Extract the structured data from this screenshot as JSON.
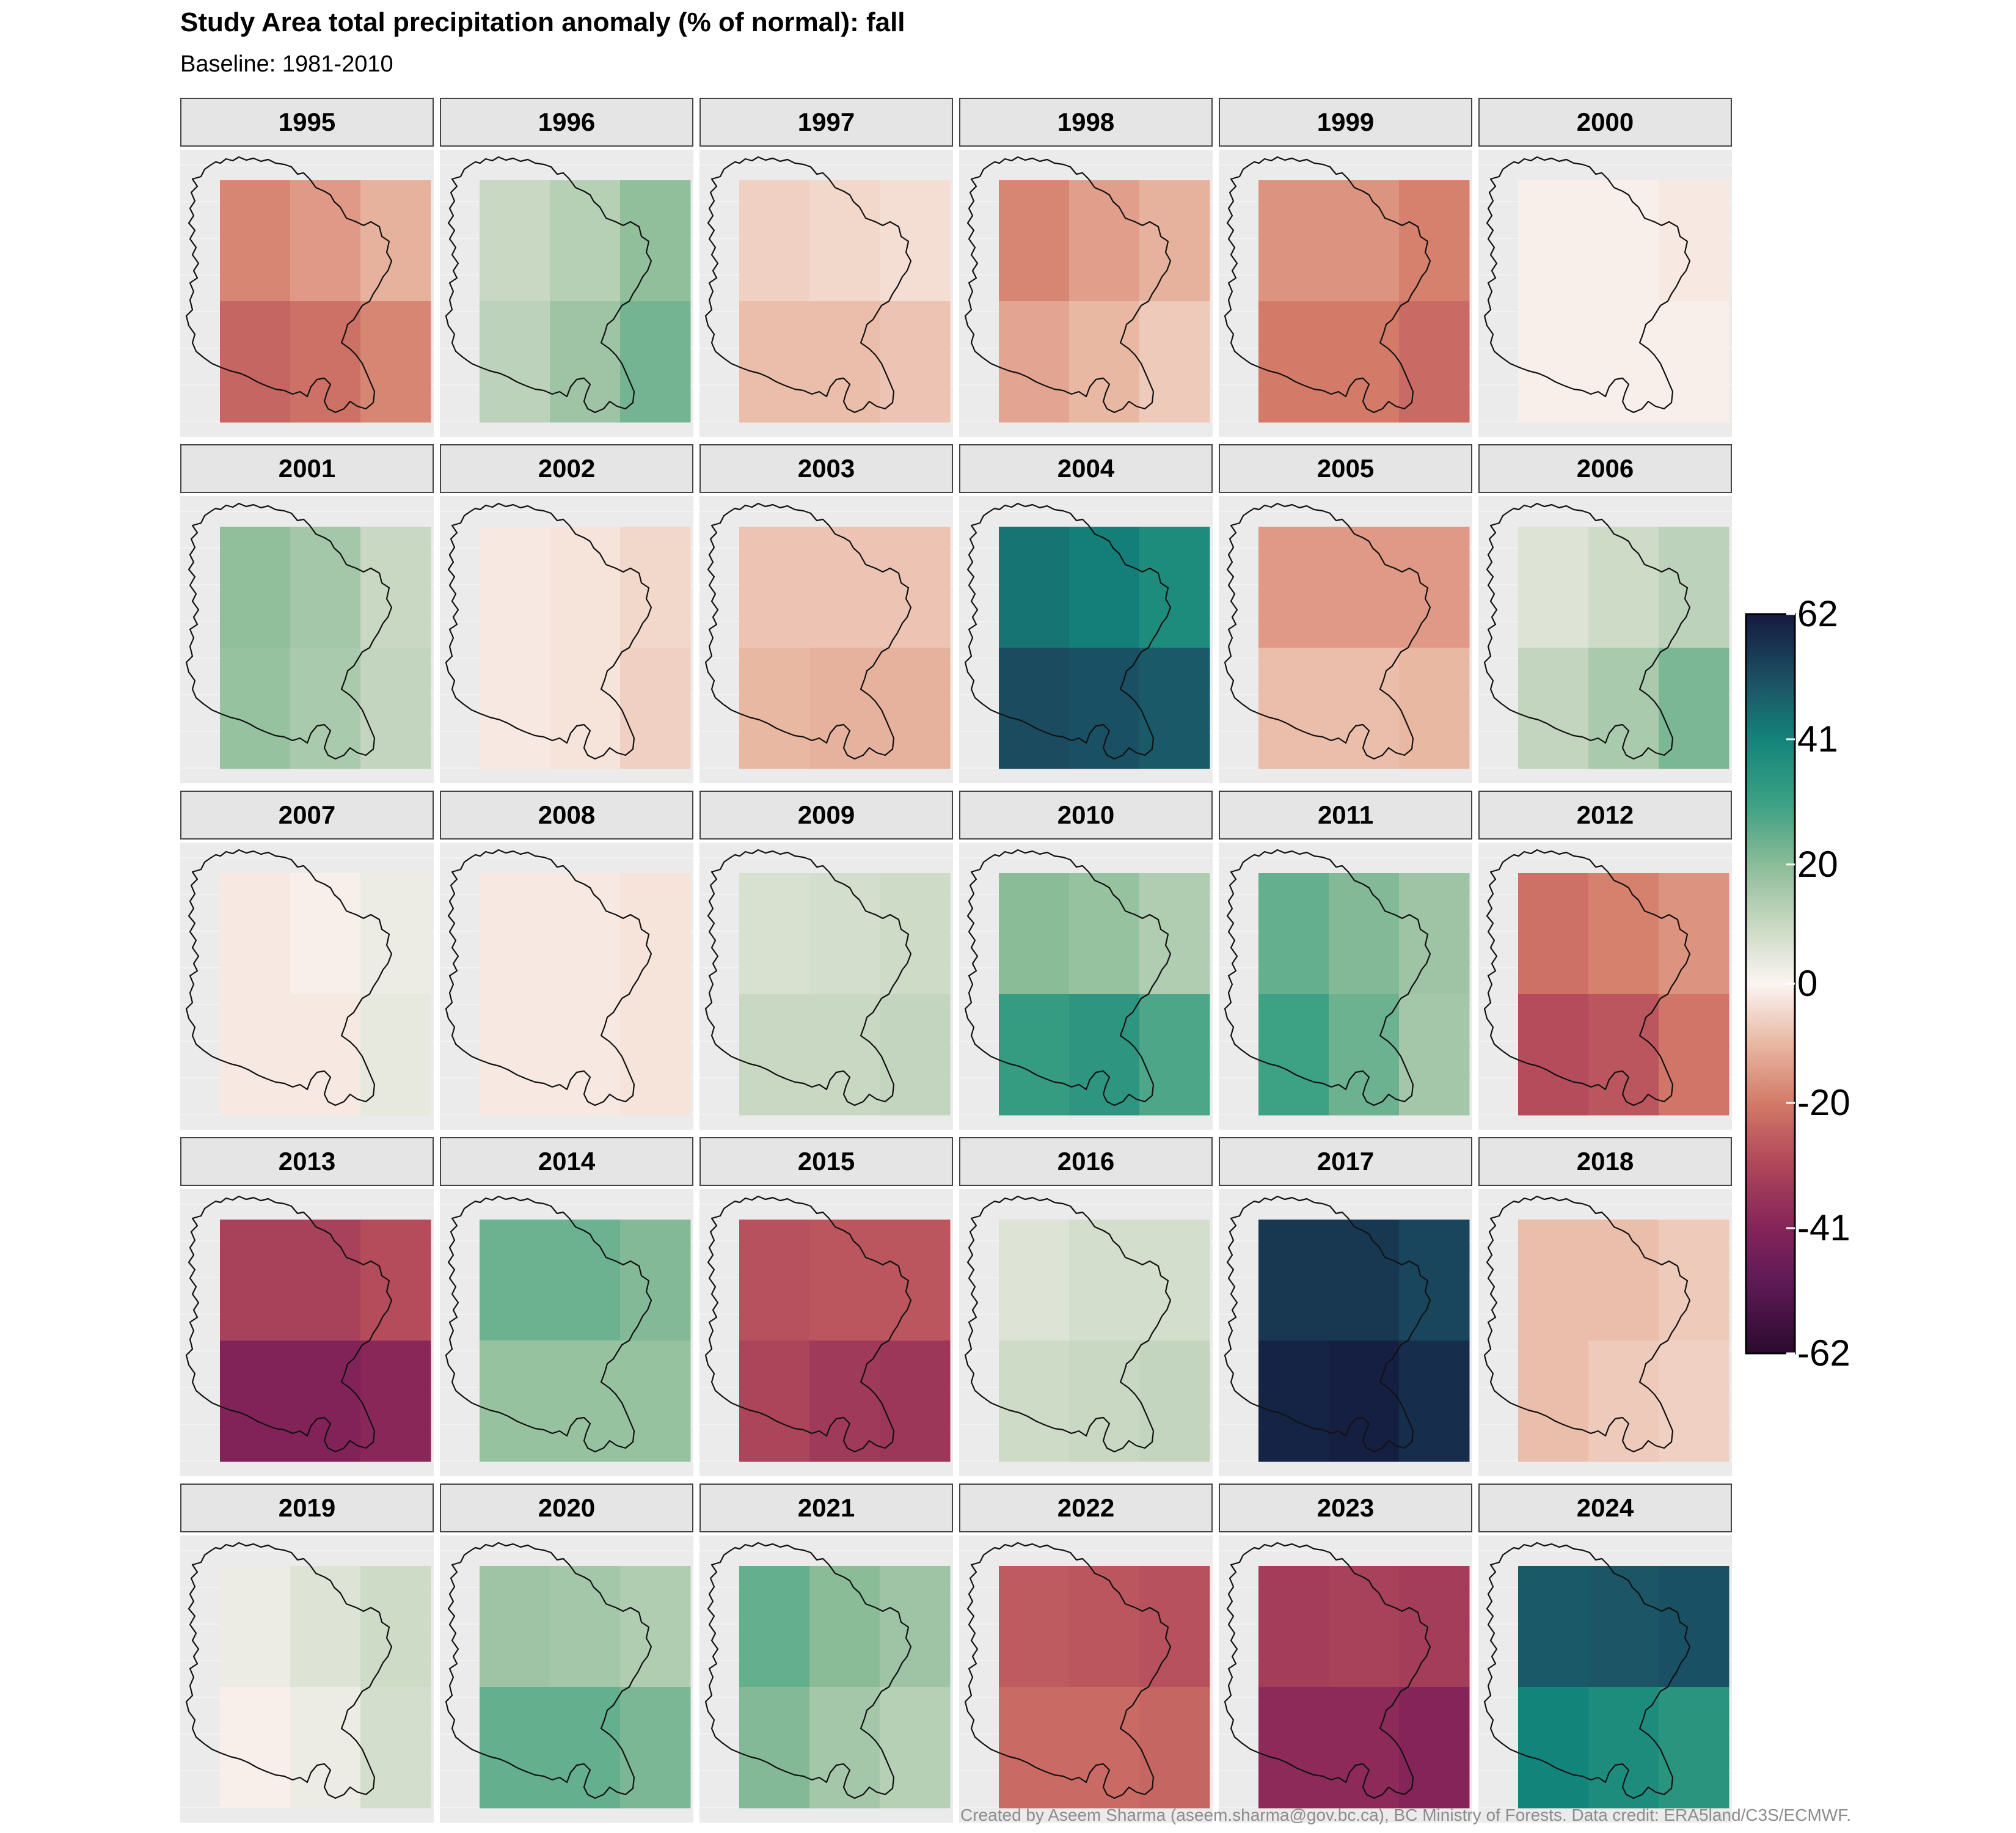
{
  "title": "Study Area total precipitation anomaly (% of normal): fall",
  "subtitle": "Baseline: 1981-2010",
  "caption": "Created by Aseem Sharma (aseem.sharma@gov.bc.ca), BC Ministry of Forests. Data credit: ERA5land/C3S/ECMWF.",
  "chart_data": {
    "type": "heatmap",
    "layout": "small multiples, 5 rows x 6 columns, each panel a 3x2 grid of cells clipped by a study-area outline",
    "cell_grid": {
      "columns": 3,
      "rows": 2,
      "order": "row-major, top row first"
    },
    "value_units": "% of normal (anomaly)",
    "colorbar": {
      "range": [
        -62,
        62
      ],
      "ticks": [
        62,
        41,
        20,
        0,
        -20,
        -41,
        -62
      ],
      "colors": [
        {
          "value": -62,
          "color": "#2b0a2e"
        },
        {
          "value": -50,
          "color": "#5e1a56"
        },
        {
          "value": -41,
          "color": "#852459"
        },
        {
          "value": -30,
          "color": "#b0475a"
        },
        {
          "value": -20,
          "color": "#d47a68"
        },
        {
          "value": -10,
          "color": "#e9b8a3"
        },
        {
          "value": 0,
          "color": "#fbf5f2"
        },
        {
          "value": 10,
          "color": "#c9d8c2"
        },
        {
          "value": 20,
          "color": "#8bbc98"
        },
        {
          "value": 30,
          "color": "#3da184"
        },
        {
          "value": 41,
          "color": "#13847a"
        },
        {
          "value": 50,
          "color": "#1b5566"
        },
        {
          "value": 62,
          "color": "#141a3e"
        }
      ]
    },
    "panels": [
      {
        "label": "1995",
        "values": [
          -18,
          -15,
          -11,
          -24,
          -22,
          -18
        ]
      },
      {
        "label": "1996",
        "values": [
          10,
          13,
          19,
          12,
          17,
          23
        ]
      },
      {
        "label": "1997",
        "values": [
          -6,
          -5,
          -4,
          -9,
          -9,
          -8
        ]
      },
      {
        "label": "1998",
        "values": [
          -18,
          -14,
          -11,
          -13,
          -10,
          -7
        ]
      },
      {
        "label": "1999",
        "values": [
          -16,
          -16,
          -19,
          -20,
          -20,
          -23
        ]
      },
      {
        "label": "2000",
        "values": [
          -1,
          -1,
          -2,
          -1,
          -1,
          -1
        ]
      },
      {
        "label": "2001",
        "values": [
          19,
          16,
          10,
          18,
          15,
          11
        ]
      },
      {
        "label": "2002",
        "values": [
          -2,
          -3,
          -5,
          -2,
          -3,
          -6
        ]
      },
      {
        "label": "2003",
        "values": [
          -8,
          -8,
          -8,
          -10,
          -11,
          -11
        ]
      },
      {
        "label": "2004",
        "values": [
          44,
          42,
          38,
          52,
          51,
          49
        ]
      },
      {
        "label": "2005",
        "values": [
          -15,
          -15,
          -15,
          -9,
          -9,
          -10
        ]
      },
      {
        "label": "2006",
        "values": [
          6,
          9,
          12,
          11,
          15,
          22
        ]
      },
      {
        "label": "2007",
        "values": [
          -2,
          -1,
          3,
          -2,
          -2,
          4
        ]
      },
      {
        "label": "2008",
        "values": [
          -2,
          -2,
          -3,
          -2,
          -2,
          -3
        ]
      },
      {
        "label": "2009",
        "values": [
          7,
          8,
          9,
          10,
          10,
          11
        ]
      },
      {
        "label": "2010",
        "values": [
          20,
          18,
          14,
          32,
          34,
          28
        ]
      },
      {
        "label": "2011",
        "values": [
          25,
          21,
          17,
          30,
          24,
          16
        ]
      },
      {
        "label": "2012",
        "values": [
          -22,
          -19,
          -16,
          -29,
          -27,
          -21
        ]
      },
      {
        "label": "2013",
        "values": [
          -32,
          -32,
          -29,
          -42,
          -42,
          -40
        ]
      },
      {
        "label": "2014",
        "values": [
          24,
          24,
          21,
          18,
          18,
          18
        ]
      },
      {
        "label": "2015",
        "values": [
          -28,
          -27,
          -27,
          -31,
          -34,
          -35
        ]
      },
      {
        "label": "2016",
        "values": [
          6,
          8,
          8,
          9,
          10,
          11
        ]
      },
      {
        "label": "2017",
        "values": [
          56,
          56,
          53,
          60,
          61,
          58
        ]
      },
      {
        "label": "2018",
        "values": [
          -9,
          -9,
          -7,
          -9,
          -7,
          -6
        ]
      },
      {
        "label": "2019",
        "values": [
          3,
          6,
          9,
          -1,
          3,
          8
        ]
      },
      {
        "label": "2020",
        "values": [
          17,
          16,
          14,
          25,
          25,
          22
        ]
      },
      {
        "label": "2021",
        "values": [
          25,
          20,
          17,
          21,
          16,
          13
        ]
      },
      {
        "label": "2022",
        "values": [
          -26,
          -27,
          -28,
          -23,
          -23,
          -24
        ]
      },
      {
        "label": "2023",
        "values": [
          -33,
          -32,
          -33,
          -39,
          -39,
          -41
        ]
      },
      {
        "label": "2024",
        "values": [
          49,
          50,
          51,
          41,
          38,
          35
        ]
      }
    ]
  }
}
